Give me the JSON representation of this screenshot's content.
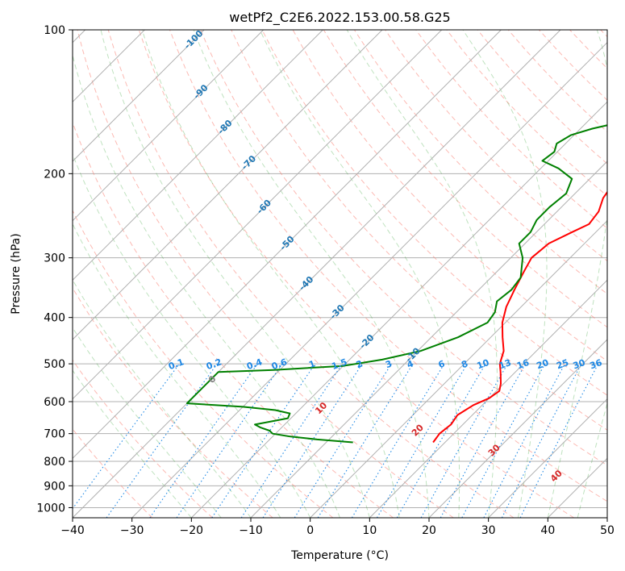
{
  "chart_data": {
    "type": "line",
    "title": "wetPf2_C2E6.2022.153.00.58.G25",
    "xlabel": "Temperature (°C)",
    "ylabel": "Pressure (hPa)",
    "xlim": [
      -40,
      50
    ],
    "ylim": [
      1050,
      100
    ],
    "y_scale": "log",
    "grid": true,
    "x_ticks": [
      -40,
      -30,
      -20,
      -10,
      0,
      10,
      20,
      30,
      40,
      50
    ],
    "y_ticks": [
      100,
      200,
      300,
      400,
      500,
      600,
      700,
      800,
      900,
      1000
    ],
    "series": [
      {
        "color": "#ff0000",
        "points": [
          [
            8.0,
            730
          ],
          [
            7.6,
            700
          ],
          [
            8.0,
            670
          ],
          [
            7.5,
            640
          ],
          [
            8.5,
            610
          ],
          [
            10.0,
            590
          ],
          [
            10.5,
            570
          ],
          [
            9.5,
            550
          ],
          [
            7.5,
            520
          ],
          [
            6.0,
            500
          ],
          [
            4.5,
            470
          ],
          [
            2.0,
            440
          ],
          [
            -0.5,
            410
          ],
          [
            -2.5,
            380
          ],
          [
            -4.0,
            350
          ],
          [
            -5.5,
            320
          ],
          [
            -6.5,
            300
          ],
          [
            -6.0,
            280
          ],
          [
            -4.0,
            265
          ],
          [
            -2.5,
            255
          ],
          [
            -3.0,
            240
          ],
          [
            -4.5,
            225
          ],
          [
            -5.0,
            215
          ],
          [
            -3.0,
            205
          ],
          [
            0.0,
            198
          ],
          [
            5.0,
            190
          ],
          [
            7.5,
            180
          ],
          [
            10.0,
            165
          ],
          [
            10.5,
            150
          ],
          [
            11.5,
            140
          ],
          [
            13.5,
            130
          ],
          [
            17.0,
            120
          ],
          [
            20.0,
            113
          ],
          [
            22.5,
            105
          ],
          [
            24.0,
            100
          ]
        ]
      },
      {
        "color": "#008000",
        "points": [
          [
            -5.5,
            730
          ],
          [
            -12.0,
            720
          ],
          [
            -17.0,
            710
          ],
          [
            -20.5,
            700
          ],
          [
            -21.5,
            690
          ],
          [
            -23.5,
            680
          ],
          [
            -25.0,
            670
          ],
          [
            -20.5,
            650
          ],
          [
            -21.0,
            635
          ],
          [
            -24.0,
            625
          ],
          [
            -30.0,
            615
          ],
          [
            -40.0,
            605
          ],
          [
            -40.0,
            520
          ],
          [
            -31.0,
            515
          ],
          [
            -20.0,
            505
          ],
          [
            -14.5,
            490
          ],
          [
            -9.5,
            470
          ],
          [
            -5.5,
            440
          ],
          [
            -3.0,
            410
          ],
          [
            -3.5,
            390
          ],
          [
            -5.0,
            370
          ],
          [
            -4.5,
            350
          ],
          [
            -5.0,
            330
          ],
          [
            -8.0,
            300
          ],
          [
            -11.0,
            280
          ],
          [
            -11.0,
            265
          ],
          [
            -12.0,
            250
          ],
          [
            -12.0,
            235
          ],
          [
            -11.5,
            220
          ],
          [
            -13.0,
            205
          ],
          [
            -17.0,
            195
          ],
          [
            -21.0,
            188
          ],
          [
            -20.5,
            180
          ],
          [
            -21.5,
            173
          ],
          [
            -20.5,
            166
          ],
          [
            -18.0,
            161
          ],
          [
            -13.5,
            155
          ],
          [
            -10.5,
            145
          ],
          [
            -7.5,
            136
          ],
          [
            -6.5,
            130
          ],
          [
            -6.5,
            125
          ],
          [
            -6.0,
            119
          ],
          [
            -6.5,
            115
          ],
          [
            -5.5,
            110
          ],
          [
            -3.0,
            105
          ],
          [
            -1.0,
            100
          ]
        ]
      }
    ],
    "isotherm_labels": [
      "-100",
      "-90",
      "-80",
      "-70",
      "-60",
      "-50",
      "-40",
      "-30",
      "-20",
      "-10"
    ],
    "mixing_ratio_labels": [
      "0.1",
      "0.2",
      "0.4",
      "0.6",
      "1",
      "1.5",
      "2",
      "3",
      "4",
      "6",
      "8",
      "10",
      "13",
      "16",
      "20",
      "25",
      "30",
      "36"
    ],
    "moist_adiabat_labels": [
      "0",
      "10",
      "20",
      "30",
      "40"
    ],
    "colors": {
      "isotherm_label": "#1f77b4",
      "mixing_ratio": "#1e88e5",
      "moist_adiabat_label": "#d62728",
      "zero_label": "#808080",
      "dry_adiabat": "#fa8072",
      "moist_adiabat": "#2ca02c",
      "grid": "#b0b0b0"
    }
  }
}
